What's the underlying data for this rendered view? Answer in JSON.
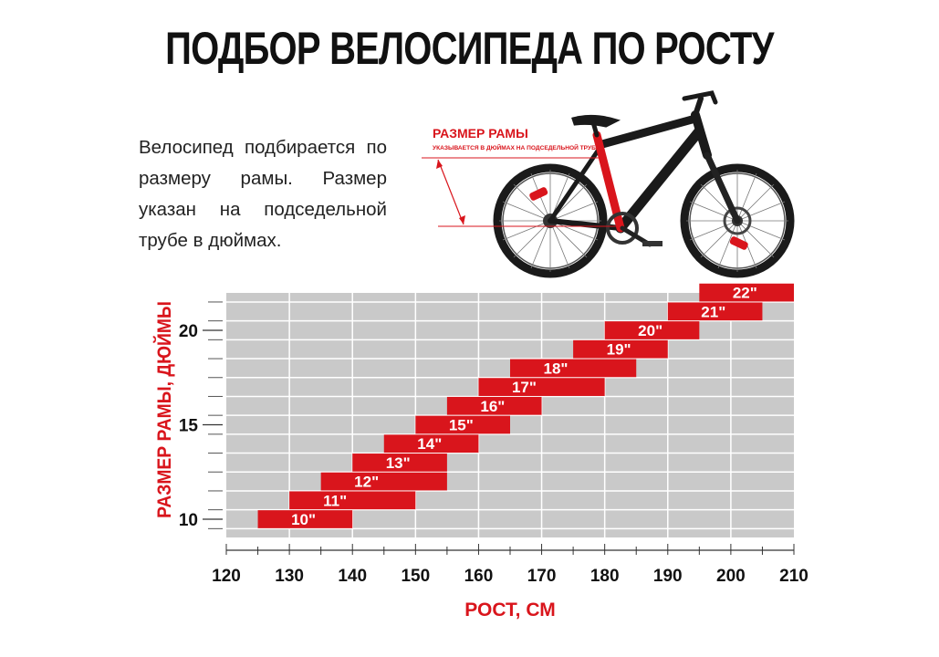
{
  "title": "ПОДБОР ВЕЛОСИПЕДА ПО РОСТУ",
  "intro_text": "Велосипед подбирается по размеру рамы. Размер указан на подседельной трубе в дюймах.",
  "bike_illustration": {
    "frame_label": "РАЗМЕР РАМЫ",
    "frame_sublabel": "УКАЗЫВАЕТСЯ В ДЮЙМАХ НА ПОДСЕДЕЛЬНОЙ ТРУБЕ"
  },
  "colors": {
    "accent": "#d9151c",
    "plot_bg": "#c9c9c9",
    "grid": "#ffffff",
    "text": "#111111"
  },
  "chart_data": {
    "type": "bar",
    "orientation": "horizontal-range",
    "xlabel": "РОСТ, СМ",
    "ylabel": "РАЗМЕР РАМЫ, ДЮЙМЫ",
    "xlim": [
      120,
      210
    ],
    "ylim": [
      9,
      22.5
    ],
    "x_ticks": [
      120,
      130,
      140,
      150,
      160,
      170,
      180,
      190,
      200,
      210
    ],
    "y_ticks": [
      10,
      15,
      20
    ],
    "grid": true,
    "bars": [
      {
        "label": "10\"",
        "size": 10,
        "from": 125,
        "to": 140
      },
      {
        "label": "11\"",
        "size": 11,
        "from": 130,
        "to": 150
      },
      {
        "label": "12\"",
        "size": 12,
        "from": 135,
        "to": 155
      },
      {
        "label": "13\"",
        "size": 13,
        "from": 140,
        "to": 155
      },
      {
        "label": "14\"",
        "size": 14,
        "from": 145,
        "to": 160
      },
      {
        "label": "15\"",
        "size": 15,
        "from": 150,
        "to": 165
      },
      {
        "label": "16\"",
        "size": 16,
        "from": 155,
        "to": 170
      },
      {
        "label": "17\"",
        "size": 17,
        "from": 160,
        "to": 180
      },
      {
        "label": "18\"",
        "size": 18,
        "from": 165,
        "to": 185
      },
      {
        "label": "19\"",
        "size": 19,
        "from": 175,
        "to": 190
      },
      {
        "label": "20\"",
        "size": 20,
        "from": 180,
        "to": 195
      },
      {
        "label": "21\"",
        "size": 21,
        "from": 190,
        "to": 205
      },
      {
        "label": "22\"",
        "size": 22,
        "from": 195,
        "to": 210
      }
    ]
  }
}
